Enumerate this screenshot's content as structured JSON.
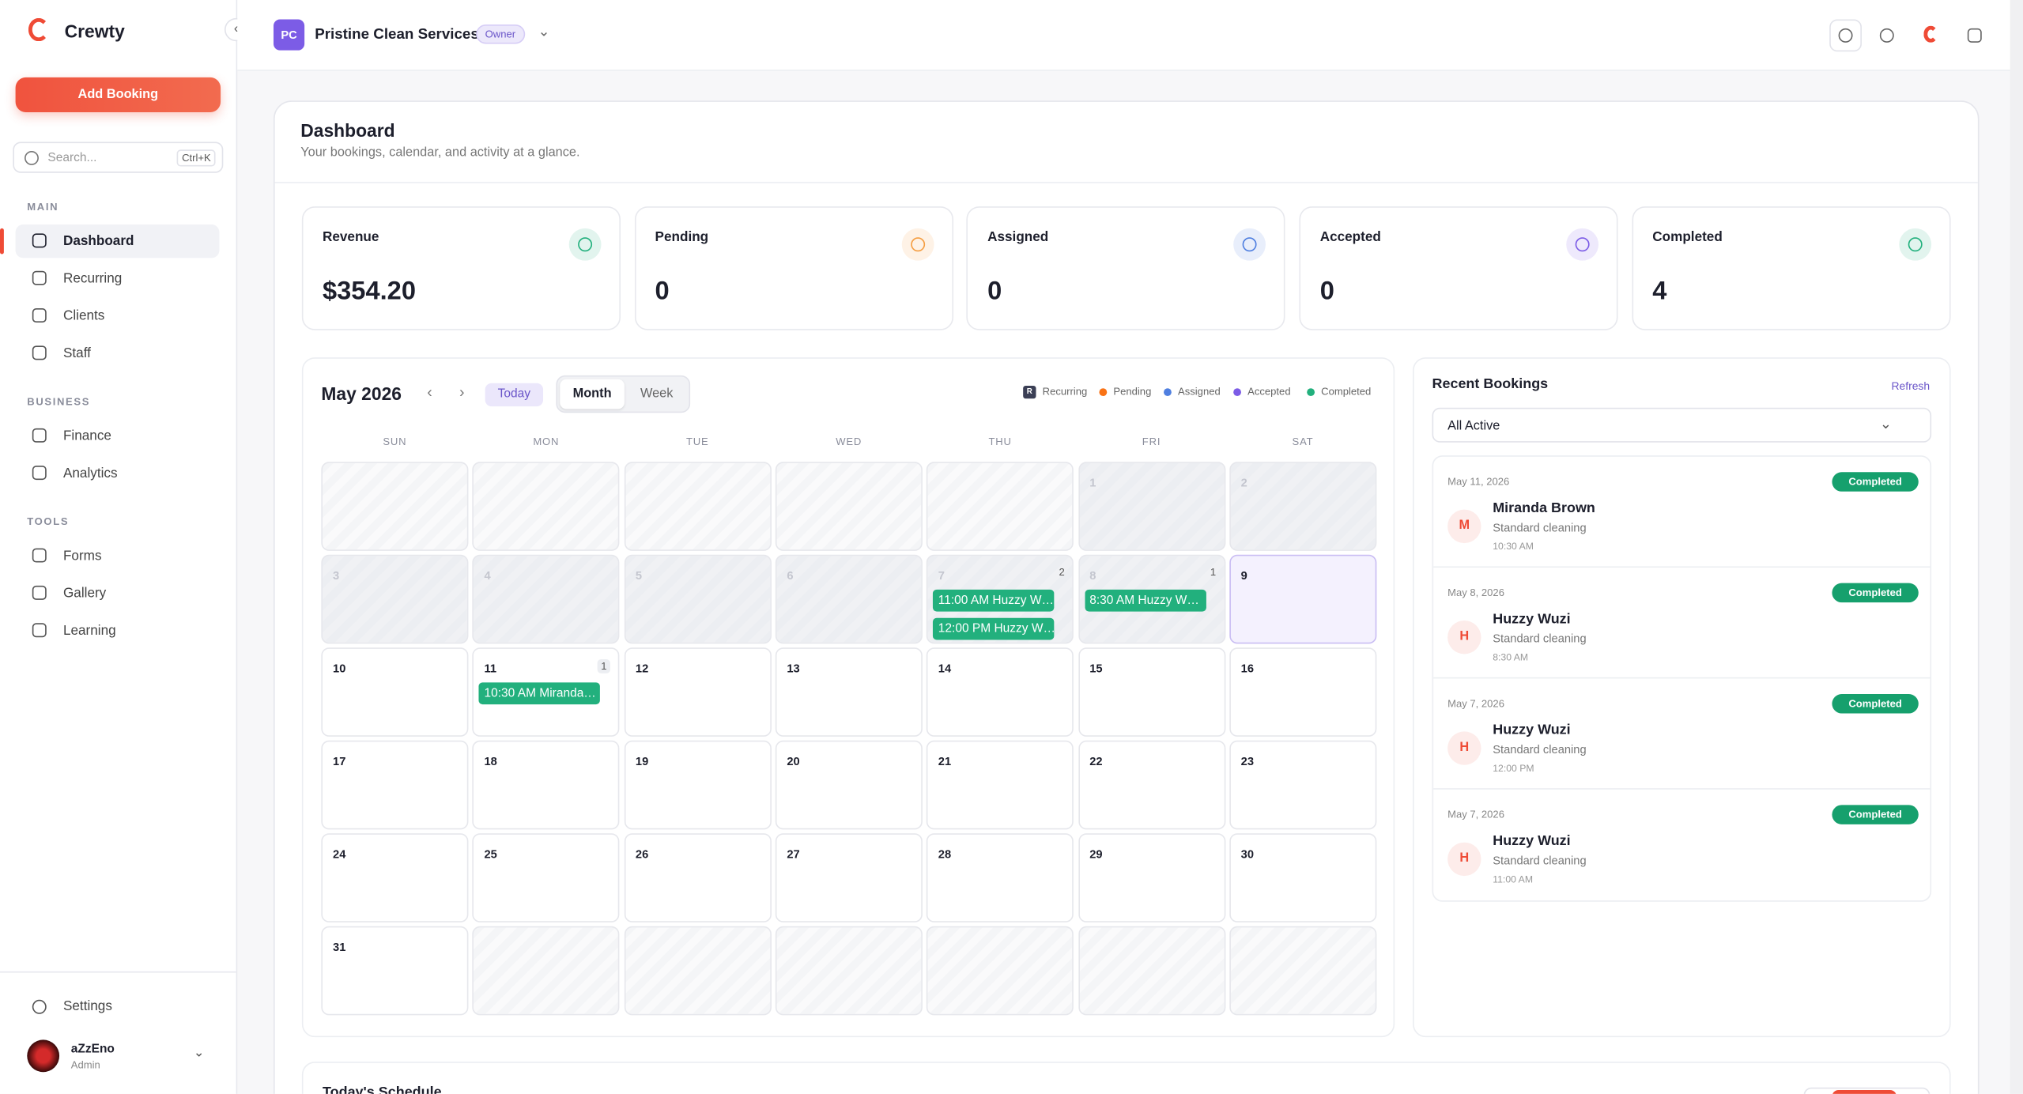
{
  "sidebar": {
    "brand": "Crewty",
    "add_booking": "Add Booking",
    "search_placeholder": "Search...",
    "search_shortcut": "Ctrl+K",
    "sections": [
      {
        "title": "MAIN",
        "items": [
          "Dashboard",
          "Recurring",
          "Clients",
          "Staff"
        ]
      },
      {
        "title": "BUSINESS",
        "items": [
          "Finance",
          "Analytics"
        ]
      },
      {
        "title": "TOOLS",
        "items": [
          "Forms",
          "Gallery",
          "Learning"
        ]
      }
    ],
    "settings": "Settings",
    "user": {
      "name": "aZzEno",
      "role": "Admin"
    }
  },
  "header": {
    "initials": "PC",
    "company": "Pristine Clean Services",
    "role_badge": "Owner"
  },
  "dashboard": {
    "title": "Dashboard",
    "subtitle": "Your bookings, calendar, and activity at a glance."
  },
  "stats": [
    {
      "label": "Revenue",
      "value": "$354.20",
      "color": "#22b07d"
    },
    {
      "label": "Pending",
      "value": 0,
      "color": "#f59e42"
    },
    {
      "label": "Assigned",
      "value": 0,
      "color": "#4f7fe0"
    },
    {
      "label": "Accepted",
      "value": 0,
      "color": "#7c5ce6"
    },
    {
      "label": "Completed",
      "value": 4,
      "color": "#22b07d"
    }
  ],
  "calendar": {
    "month": "May 2026",
    "today": "Today",
    "views": [
      "Month",
      "Week"
    ],
    "legend": [
      {
        "badge": "R",
        "label": "Recurring",
        "color": "#3b3f55"
      },
      {
        "label": "Pending",
        "color": "#f97316"
      },
      {
        "label": "Assigned",
        "color": "#4f7fe0"
      },
      {
        "label": "Accepted",
        "color": "#7c5ce6"
      },
      {
        "label": "Completed",
        "color": "#22b07d"
      }
    ],
    "weekdays": [
      "SUN",
      "MON",
      "TUE",
      "WED",
      "THU",
      "FRI",
      "SAT"
    ],
    "weeks": [
      [
        null,
        null,
        null,
        null,
        null,
        {
          "day": 1,
          "past": true
        },
        {
          "day": 2,
          "past": true
        }
      ],
      [
        {
          "day": 3,
          "past": true
        },
        {
          "day": 4,
          "past": true
        },
        {
          "day": 5,
          "past": true
        },
        {
          "day": 6,
          "past": true
        },
        {
          "day": 7,
          "past": true,
          "count": 2,
          "events": [
            "11:00 AM Huzzy W…",
            "12:00 PM Huzzy W…"
          ]
        },
        {
          "day": 8,
          "past": true,
          "count": 1,
          "events": [
            "8:30 AM Huzzy W…"
          ]
        },
        {
          "day": 9,
          "today": true
        }
      ],
      [
        {
          "day": 10
        },
        {
          "day": 11,
          "count": 1,
          "events": [
            "10:30 AM Miranda…"
          ]
        },
        {
          "day": 12
        },
        {
          "day": 13
        },
        {
          "day": 14
        },
        {
          "day": 15
        },
        {
          "day": 16
        }
      ],
      [
        {
          "day": 17
        },
        {
          "day": 18
        },
        {
          "day": 19
        },
        {
          "day": 20
        },
        {
          "day": 21
        },
        {
          "day": 22
        },
        {
          "day": 23
        }
      ],
      [
        {
          "day": 24
        },
        {
          "day": 25
        },
        {
          "day": 26
        },
        {
          "day": 27
        },
        {
          "day": 28
        },
        {
          "day": 29
        },
        {
          "day": 30
        }
      ],
      [
        {
          "day": 31
        },
        null,
        null,
        null,
        null,
        null,
        null
      ]
    ]
  },
  "recent": {
    "title": "Recent Bookings",
    "refresh": "Refresh",
    "filter": "All Active",
    "items": [
      {
        "date": "May 11, 2026",
        "status": "Completed",
        "initial": "M",
        "name": "Miranda Brown",
        "service": "Standard cleaning",
        "time": "10:30 AM"
      },
      {
        "date": "May 8, 2026",
        "status": "Completed",
        "initial": "H",
        "name": "Huzzy Wuzi",
        "service": "Standard cleaning",
        "time": "8:30 AM"
      },
      {
        "date": "May 7, 2026",
        "status": "Completed",
        "initial": "H",
        "name": "Huzzy Wuzi",
        "service": "Standard cleaning",
        "time": "12:00 PM"
      },
      {
        "date": "May 7, 2026",
        "status": "Completed",
        "initial": "H",
        "name": "Huzzy Wuzi",
        "service": "Standard cleaning",
        "time": "11:00 AM"
      }
    ]
  },
  "schedule": {
    "title": "Today's Schedule"
  }
}
